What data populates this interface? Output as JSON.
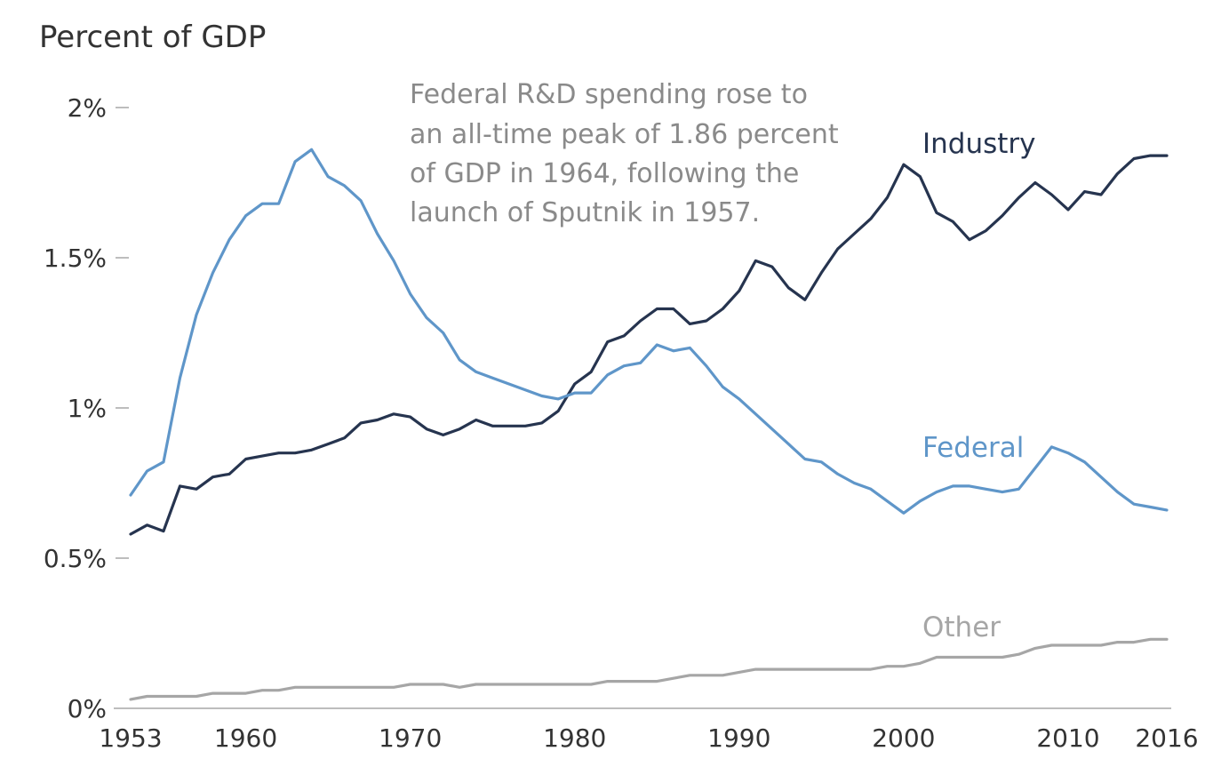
{
  "chart_data": {
    "type": "line",
    "ylabel": "Percent of GDP",
    "annotation": [
      "Federal R&D spending rose to",
      "an all-time peak of 1.86 percent",
      "of GDP in 1964, following the",
      "launch of Sputnik in 1957."
    ],
    "x_ticks": [
      1953,
      1960,
      1970,
      1980,
      1990,
      2000,
      2010,
      2016
    ],
    "y_ticks": [
      {
        "value": 0,
        "label": "0%"
      },
      {
        "value": 0.5,
        "label": "0.5%"
      },
      {
        "value": 1,
        "label": "1%"
      },
      {
        "value": 1.5,
        "label": "1.5%"
      },
      {
        "value": 2,
        "label": "2%"
      }
    ],
    "xlim": [
      1953,
      2016
    ],
    "ylim": [
      0,
      2
    ],
    "grid": false,
    "x": [
      1953,
      1954,
      1955,
      1956,
      1957,
      1958,
      1959,
      1960,
      1961,
      1962,
      1963,
      1964,
      1965,
      1966,
      1967,
      1968,
      1969,
      1970,
      1971,
      1972,
      1973,
      1974,
      1975,
      1976,
      1977,
      1978,
      1979,
      1980,
      1981,
      1982,
      1983,
      1984,
      1985,
      1986,
      1987,
      1988,
      1989,
      1990,
      1991,
      1992,
      1993,
      1994,
      1995,
      1996,
      1997,
      1998,
      1999,
      2000,
      2001,
      2002,
      2003,
      2004,
      2005,
      2006,
      2007,
      2008,
      2009,
      2010,
      2011,
      2012,
      2013,
      2014,
      2015,
      2016
    ],
    "series": [
      {
        "name": "Industry",
        "color": "#26344f",
        "values": [
          0.58,
          0.61,
          0.59,
          0.74,
          0.73,
          0.77,
          0.78,
          0.83,
          0.84,
          0.85,
          0.85,
          0.86,
          0.88,
          0.9,
          0.95,
          0.96,
          0.98,
          0.97,
          0.93,
          0.91,
          0.93,
          0.96,
          0.94,
          0.94,
          0.94,
          0.95,
          0.99,
          1.08,
          1.12,
          1.22,
          1.24,
          1.29,
          1.33,
          1.33,
          1.28,
          1.29,
          1.33,
          1.39,
          1.49,
          1.47,
          1.4,
          1.36,
          1.45,
          1.53,
          1.58,
          1.63,
          1.7,
          1.81,
          1.77,
          1.65,
          1.62,
          1.56,
          1.59,
          1.64,
          1.7,
          1.75,
          1.71,
          1.66,
          1.72,
          1.71,
          1.78,
          1.83,
          1.84,
          1.84
        ]
      },
      {
        "name": "Federal",
        "color": "#5f96c9",
        "values": [
          0.71,
          0.79,
          0.82,
          1.1,
          1.31,
          1.45,
          1.56,
          1.64,
          1.68,
          1.68,
          1.82,
          1.86,
          1.77,
          1.74,
          1.69,
          1.58,
          1.49,
          1.38,
          1.3,
          1.25,
          1.16,
          1.12,
          1.1,
          1.08,
          1.06,
          1.04,
          1.03,
          1.05,
          1.05,
          1.11,
          1.14,
          1.15,
          1.21,
          1.19,
          1.2,
          1.14,
          1.07,
          1.03,
          0.98,
          0.93,
          0.88,
          0.83,
          0.82,
          0.78,
          0.75,
          0.73,
          0.69,
          0.65,
          0.69,
          0.72,
          0.74,
          0.74,
          0.73,
          0.72,
          0.73,
          0.8,
          0.87,
          0.85,
          0.82,
          0.77,
          0.72,
          0.68,
          0.67,
          0.66
        ]
      },
      {
        "name": "Other",
        "color": "#a6a6a6",
        "values": [
          0.03,
          0.04,
          0.04,
          0.04,
          0.04,
          0.05,
          0.05,
          0.05,
          0.06,
          0.06,
          0.07,
          0.07,
          0.07,
          0.07,
          0.07,
          0.07,
          0.07,
          0.08,
          0.08,
          0.08,
          0.07,
          0.08,
          0.08,
          0.08,
          0.08,
          0.08,
          0.08,
          0.08,
          0.08,
          0.09,
          0.09,
          0.09,
          0.09,
          0.1,
          0.11,
          0.11,
          0.11,
          0.12,
          0.13,
          0.13,
          0.13,
          0.13,
          0.13,
          0.13,
          0.13,
          0.13,
          0.14,
          0.14,
          0.15,
          0.17,
          0.17,
          0.17,
          0.17,
          0.17,
          0.18,
          0.2,
          0.21,
          0.21,
          0.21,
          0.21,
          0.22,
          0.22,
          0.23,
          0.23
        ]
      }
    ]
  }
}
